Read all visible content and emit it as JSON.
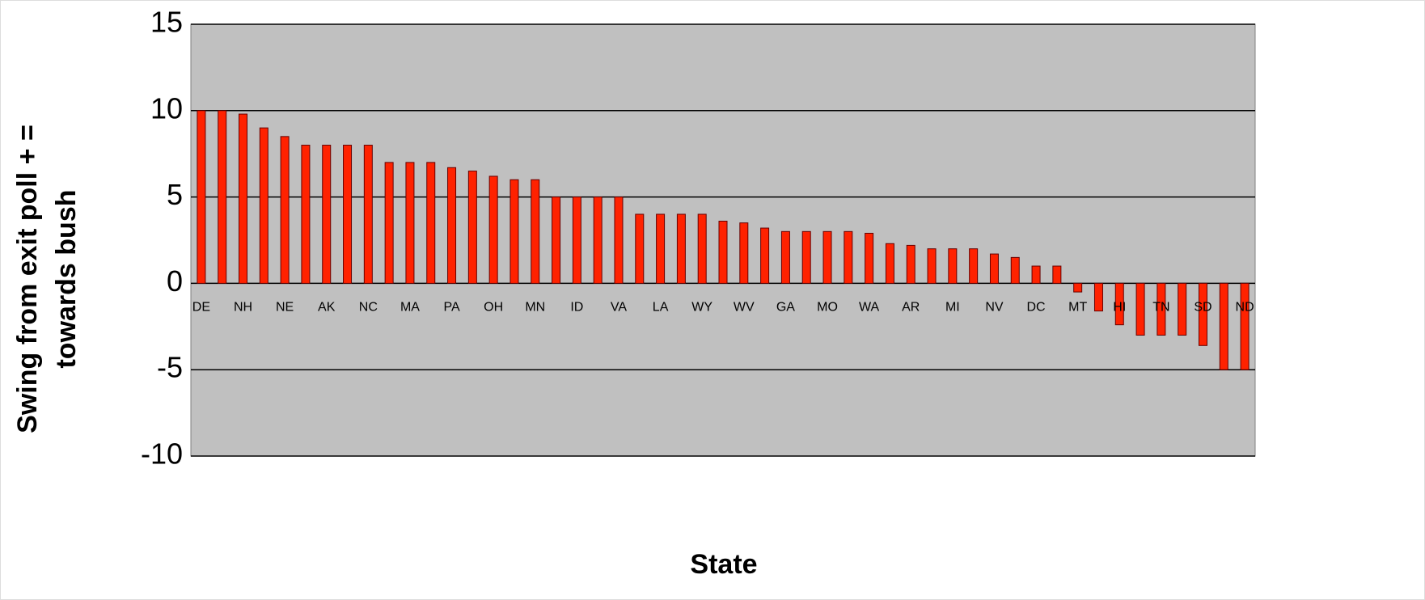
{
  "chart_data": {
    "type": "bar",
    "ylabel": [
      "Swing from exit poll + =",
      "towards bush"
    ],
    "xlabel": "State",
    "categories": [
      "DE",
      null,
      "NH",
      null,
      "NE",
      null,
      "AK",
      null,
      "NC",
      null,
      "MA",
      null,
      "PA",
      null,
      "OH",
      null,
      "MN",
      null,
      "ID",
      null,
      "VA",
      null,
      "LA",
      null,
      "WY",
      null,
      "WV",
      null,
      "GA",
      null,
      "MO",
      null,
      "WA",
      null,
      "AR",
      null,
      "MI",
      null,
      "NV",
      null,
      "DC",
      null,
      "MT",
      null,
      "HI",
      null,
      "TN",
      null,
      "SD",
      null,
      "ND"
    ],
    "values": [
      10,
      10,
      9.8,
      9,
      8.5,
      8,
      8,
      8,
      8,
      7,
      7,
      7,
      6.7,
      6.5,
      6.2,
      6,
      6,
      5,
      5,
      5,
      5,
      4,
      4,
      4,
      4,
      3.6,
      3.5,
      3.2,
      3,
      3,
      3,
      3,
      2.9,
      2.3,
      2.2,
      2,
      2,
      2,
      1.7,
      1.5,
      1,
      1,
      -0.5,
      -1.6,
      -2.4,
      -3,
      -3,
      -3,
      -3.6,
      -5,
      -5
    ],
    "color": "#ff2200",
    "ylim": [
      -10,
      15
    ],
    "yticks": [
      -10,
      -5,
      0,
      5,
      10,
      15
    ],
    "grid": true
  }
}
